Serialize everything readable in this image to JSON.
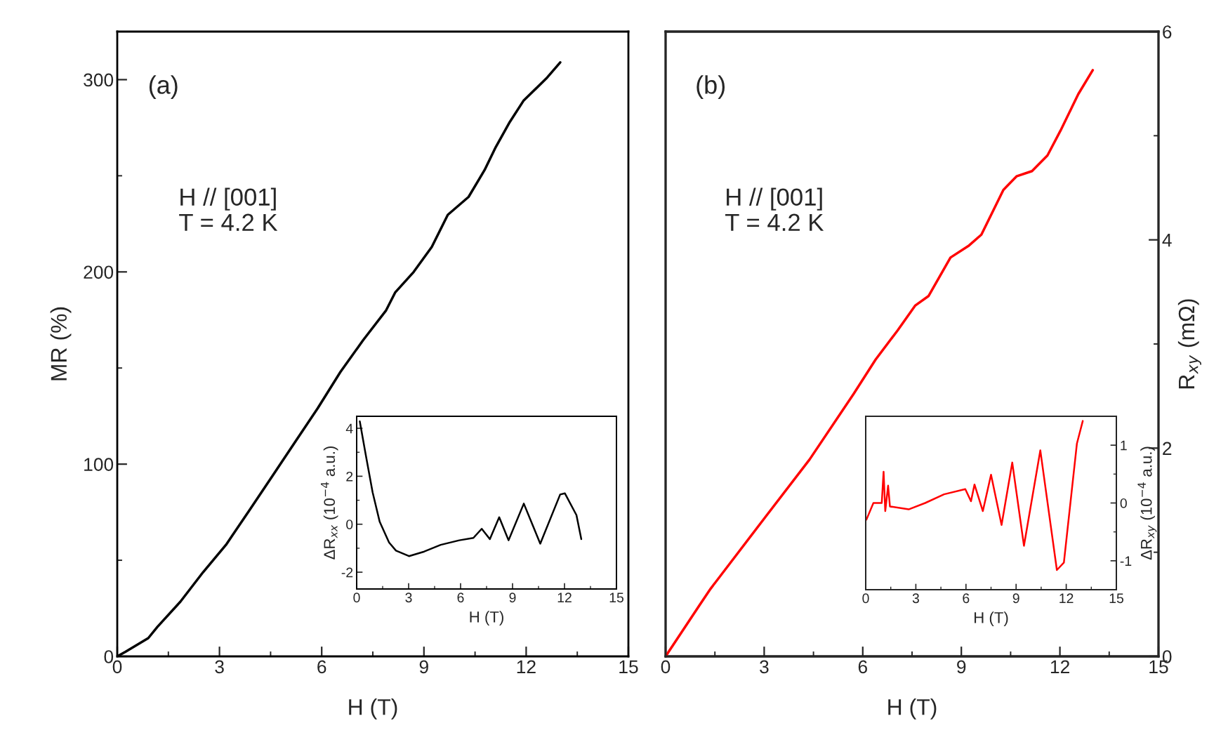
{
  "chart_data": [
    {
      "type": "line",
      "xlabel": "H (T)",
      "ylabel": "MR (%)",
      "annotations": [
        "(a)",
        "H // [001]\nT = 4.2 K"
      ],
      "x": [
        0,
        0.24,
        0.91,
        1.18,
        1.85,
        2.52,
        3.19,
        3.87,
        4.54,
        5.2,
        5.88,
        6.55,
        7.22,
        7.89,
        8.16,
        8.7,
        9.23,
        9.7,
        10.31,
        10.78,
        11.11,
        11.52,
        11.92,
        12.59,
        13.0
      ],
      "series": [
        {
          "color": "#000000",
          "values": [
            0,
            2.4,
            9.5,
            15.4,
            28.4,
            43.8,
            58,
            75.8,
            93.5,
            111,
            129,
            148,
            164.6,
            180,
            189.4,
            200,
            213,
            229.7,
            239,
            253,
            265,
            278,
            289,
            300.6,
            309
          ]
        }
      ],
      "xlim": [
        0,
        15
      ],
      "xticks": [
        0,
        {
          "value": 1.5,
          "label": null
        },
        3,
        {
          "value": 4.5,
          "label": null
        },
        6,
        {
          "value": 7.5,
          "label": null
        },
        9,
        {
          "value": 10.5,
          "label": null
        },
        12,
        {
          "value": 13.5,
          "label": null
        },
        15
      ],
      "ylim": [
        0,
        325
      ],
      "yticks": [
        0,
        {
          "value": 50,
          "label": null
        },
        100,
        {
          "value": 150,
          "label": null
        },
        200,
        {
          "value": 250,
          "label": null
        },
        300
      ]
    },
    {
      "type": "line",
      "xlabel": "H (T)",
      "ylabel": "ΔR$_{xx}$ (10$^{−4}$ a.u.)",
      "x": [
        0.18,
        0.51,
        0.92,
        1.33,
        1.87,
        2.27,
        3.02,
        3.9,
        4.85,
        5.93,
        6.74,
        7.22,
        7.69,
        8.23,
        8.77,
        9.65,
        10.6,
        11.75,
        12.02,
        12.69,
        12.97
      ],
      "series": [
        {
          "color": "#000000",
          "values": [
            4.29,
            2.95,
            1.33,
            0.1,
            -0.76,
            -1.1,
            -1.33,
            -1.14,
            -0.86,
            -0.67,
            -0.57,
            -0.19,
            -0.62,
            0.29,
            -0.67,
            0.86,
            -0.81,
            1.24,
            1.29,
            0.38,
            -0.62
          ]
        }
      ],
      "xlim": [
        0,
        15
      ],
      "xticks": [
        0,
        {
          "value": 1.5,
          "label": null
        },
        3,
        {
          "value": 4.5,
          "label": null
        },
        6,
        {
          "value": 7.5,
          "label": null
        },
        9,
        {
          "value": 10.5,
          "label": null
        },
        12,
        {
          "value": 13.5,
          "label": null
        },
        15
      ],
      "ylim": [
        -2.7,
        4.5
      ],
      "yticks": [
        -2,
        {
          "value": -1,
          "label": null
        },
        0,
        {
          "value": 1,
          "label": null
        },
        2,
        {
          "value": 3,
          "label": null
        },
        4
      ]
    },
    {
      "type": "line",
      "xlabel": "H (T)",
      "y2label": "R$_{xy}$ (mΩ)",
      "annotations": [
        "(b)",
        "H // [001]\nT = 4.2 K"
      ],
      "x": [
        0,
        1.03,
        1.37,
        3.04,
        4.38,
        5.72,
        6.39,
        7.06,
        7.6,
        8.0,
        8.67,
        9.21,
        9.61,
        10.28,
        10.68,
        11.15,
        11.62,
        12.02,
        12.56,
        13.0
      ],
      "series": [
        {
          "color": "#ff0000",
          "axis": "y2",
          "values": [
            0,
            0.49,
            0.65,
            1.34,
            1.89,
            2.52,
            2.85,
            3.13,
            3.37,
            3.46,
            3.83,
            3.94,
            4.05,
            4.48,
            4.61,
            4.66,
            4.81,
            5.05,
            5.4,
            5.63
          ]
        }
      ],
      "xlim": [
        0,
        15
      ],
      "xticks": [
        0,
        {
          "value": 1.5,
          "label": null
        },
        3,
        {
          "value": 4.5,
          "label": null
        },
        6,
        {
          "value": 7.5,
          "label": null
        },
        9,
        {
          "value": 10.5,
          "label": null
        },
        12,
        {
          "value": 13.5,
          "label": null
        },
        15
      ],
      "y2lim": [
        0,
        6
      ],
      "y2ticks": [
        0,
        {
          "value": 1,
          "label": null
        },
        2,
        {
          "value": 3,
          "label": null
        },
        4,
        {
          "value": 5,
          "label": null
        },
        6
      ]
    },
    {
      "type": "line",
      "xlabel": "H (T)",
      "y2label": "ΔR$_{xy}$ (10$^{−4}$ a.u.)",
      "x": [
        0.04,
        0.46,
        0.96,
        1.07,
        1.17,
        1.34,
        1.45,
        2.57,
        3.56,
        4.69,
        5.96,
        6.3,
        6.51,
        7.01,
        7.5,
        8.13,
        8.77,
        9.47,
        10.45,
        11.44,
        11.86,
        12.64,
        12.99
      ],
      "series": [
        {
          "color": "#ff0000",
          "axis": "y2",
          "values": [
            -0.29,
            0.0,
            0.0,
            0.54,
            -0.14,
            0.3,
            -0.06,
            -0.11,
            0.0,
            0.15,
            0.24,
            0.03,
            0.32,
            -0.14,
            0.49,
            -0.38,
            0.7,
            -0.74,
            0.91,
            -1.16,
            -1.03,
            1.03,
            1.42
          ]
        }
      ],
      "xlim": [
        0,
        15
      ],
      "xticks": [
        0,
        {
          "value": 1.5,
          "label": null
        },
        3,
        {
          "value": 4.5,
          "label": null
        },
        6,
        {
          "value": 7.5,
          "label": null
        },
        9,
        {
          "value": 10.5,
          "label": null
        },
        12,
        {
          "value": 13.5,
          "label": null
        },
        15
      ],
      "y2lim": [
        -1.5,
        1.5
      ],
      "y2ticks": [
        -1,
        {
          "value": -0.5,
          "label": null
        },
        0,
        {
          "value": 0.5,
          "label": null
        },
        1
      ]
    }
  ]
}
